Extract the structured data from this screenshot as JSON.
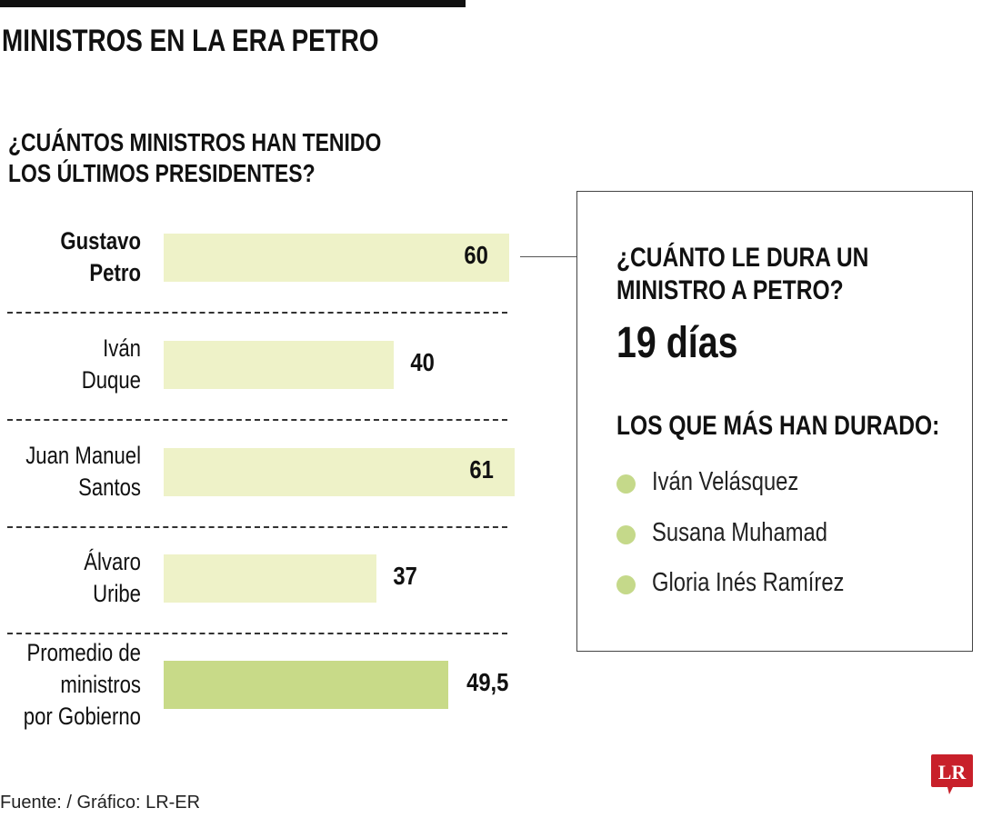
{
  "title": "MINISTROS EN LA ERA PETRO",
  "subtitle": "¿CUÁNTOS MINISTROS HAN TENIDO\nLOS ÚLTIMOS PRESIDENTES?",
  "chart_data": {
    "type": "bar",
    "orientation": "horizontal",
    "title": "¿CUÁNTOS MINISTROS HAN TENIDO LOS ÚLTIMOS PRESIDENTES?",
    "categories": [
      "Gustavo\nPetro",
      "Iván\nDuque",
      "Juan Manuel\nSantos",
      "Álvaro\nUribe",
      "Promedio de\nministros\npor Gobierno"
    ],
    "values": [
      60,
      40,
      61,
      37,
      49.5
    ],
    "value_labels": [
      "60",
      "40",
      "61",
      "37",
      "49,5"
    ],
    "highlight": [
      true,
      false,
      false,
      false,
      false
    ],
    "colors": [
      "#eef2c8",
      "#eef2c8",
      "#eef2c8",
      "#eef2c8",
      "#c8da88"
    ],
    "xlim": [
      0,
      61
    ],
    "grid": false
  },
  "box": {
    "question": "¿CUÁNTO LE DURA UN\nMINISTRO A PETRO?",
    "answer": "19 días",
    "list_title": "LOS QUE MÁS HAN DURADO:",
    "items": [
      "Iván Velásquez",
      "Susana Muhamad",
      "Gloria Inés Ramírez"
    ],
    "dot_color": "#c5d98a"
  },
  "source": "Fuente: / Gráfico: LR-ER",
  "logo": {
    "text": "LR",
    "color": "#c8202a"
  }
}
